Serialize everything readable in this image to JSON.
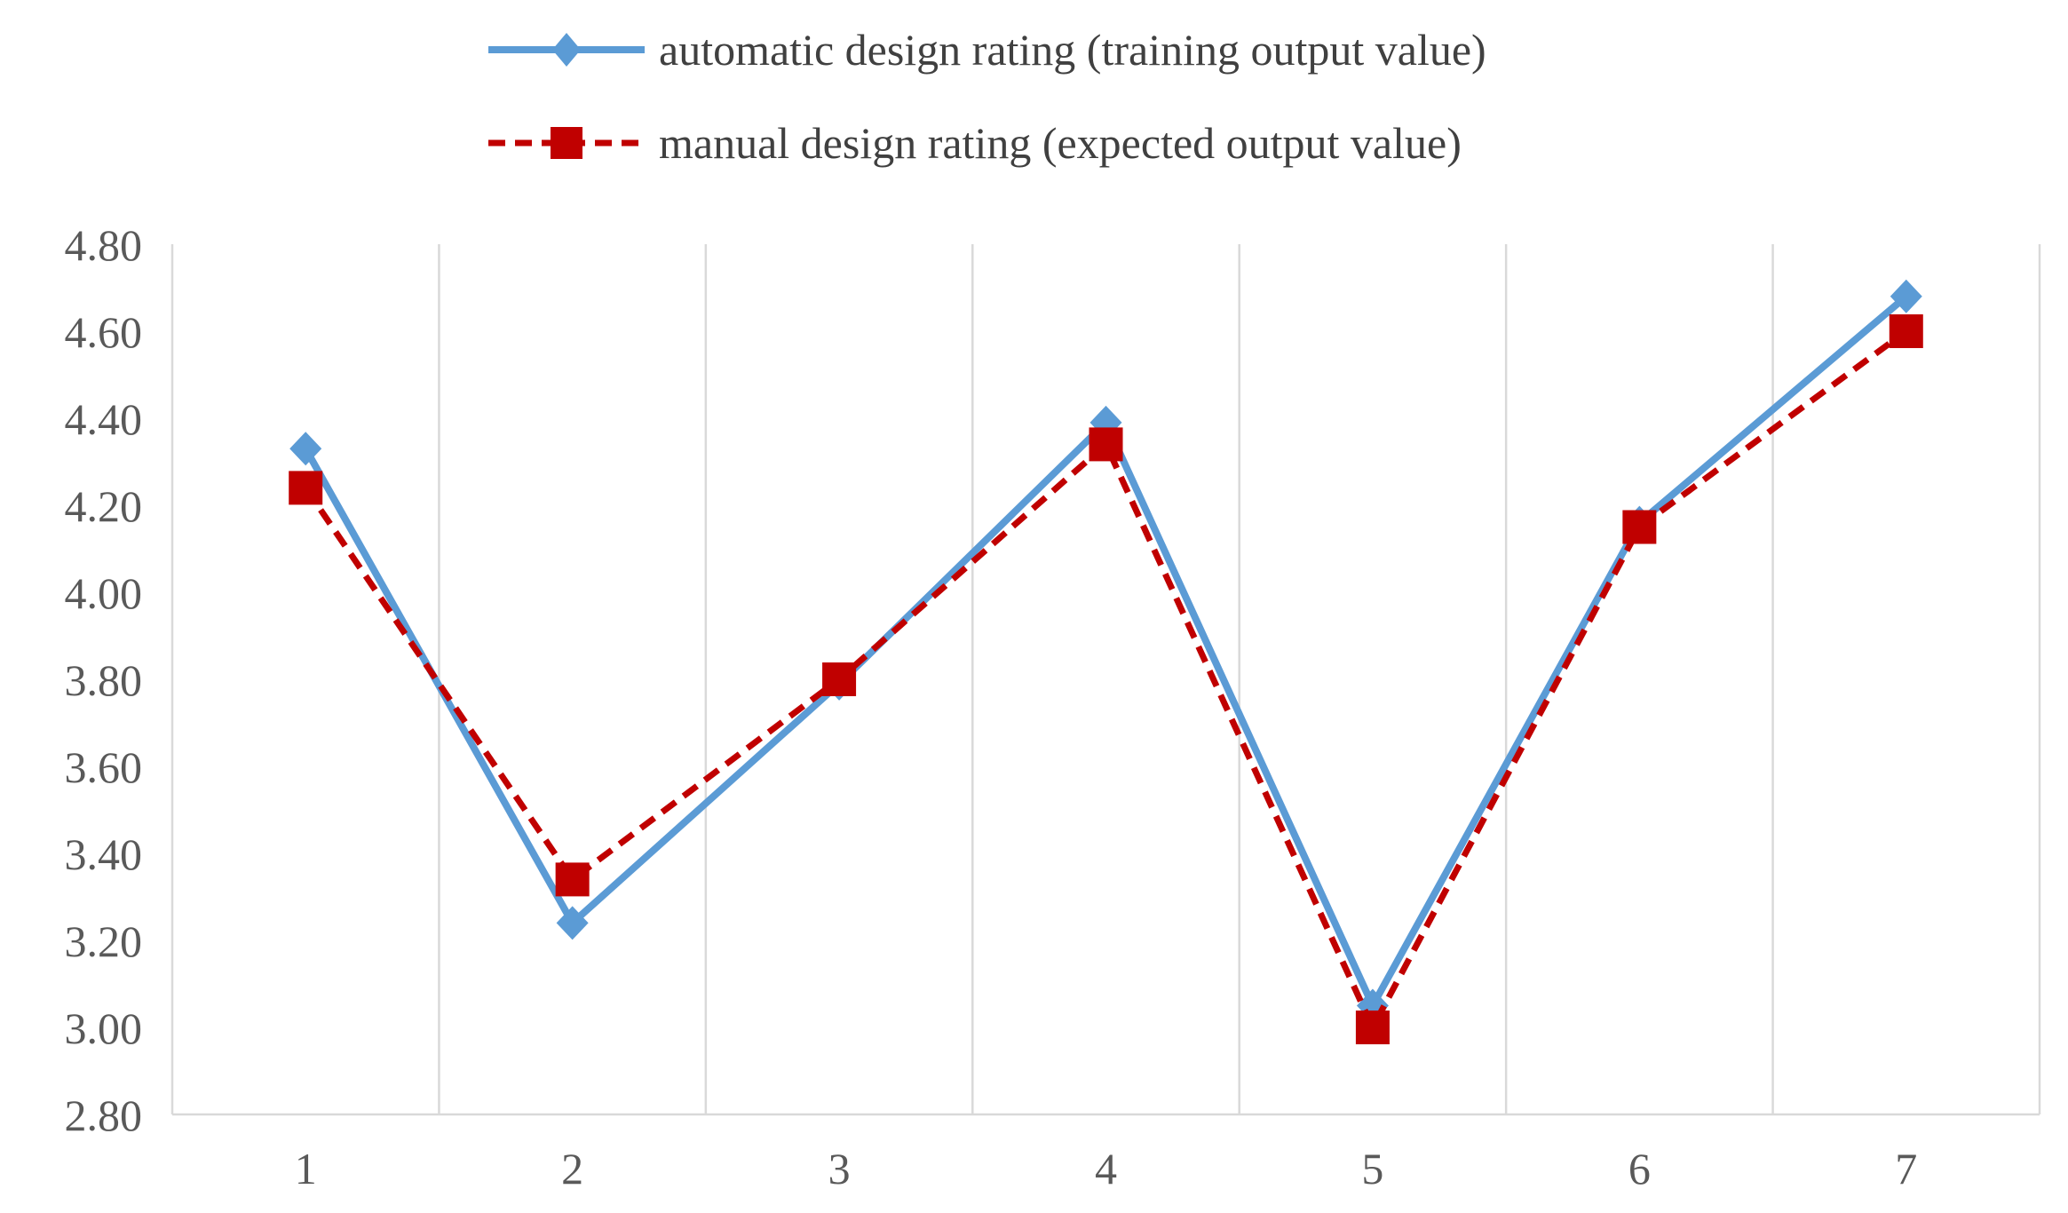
{
  "chart_data": {
    "type": "line",
    "title": "",
    "xlabel": "",
    "ylabel": "",
    "categories": [
      "1",
      "2",
      "3",
      "4",
      "5",
      "6",
      "7"
    ],
    "series": [
      {
        "name": "automatic design rating (training output value)",
        "values": [
          4.33,
          3.24,
          3.79,
          4.39,
          3.05,
          4.16,
          4.68
        ],
        "color": "#5B9BD5",
        "marker": "diamond",
        "line_style": "solid"
      },
      {
        "name": "manual design rating (expected output value)",
        "values": [
          4.24,
          3.34,
          3.8,
          4.34,
          3.0,
          4.15,
          4.6
        ],
        "color": "#C00000",
        "marker": "square",
        "line_style": "dashed"
      }
    ],
    "ylim": [
      2.8,
      4.8
    ],
    "ytick_step": 0.2,
    "ytick_labels": [
      "2.80",
      "3.00",
      "3.20",
      "3.40",
      "3.60",
      "3.80",
      "4.00",
      "4.20",
      "4.40",
      "4.60",
      "4.80"
    ],
    "grid": "vertical-only",
    "legend_position": "top",
    "colors": {
      "gridline": "#D9D9D9",
      "axis_line": "#D9D9D9",
      "tick_text": "#595959",
      "legend_text": "#404040"
    }
  }
}
